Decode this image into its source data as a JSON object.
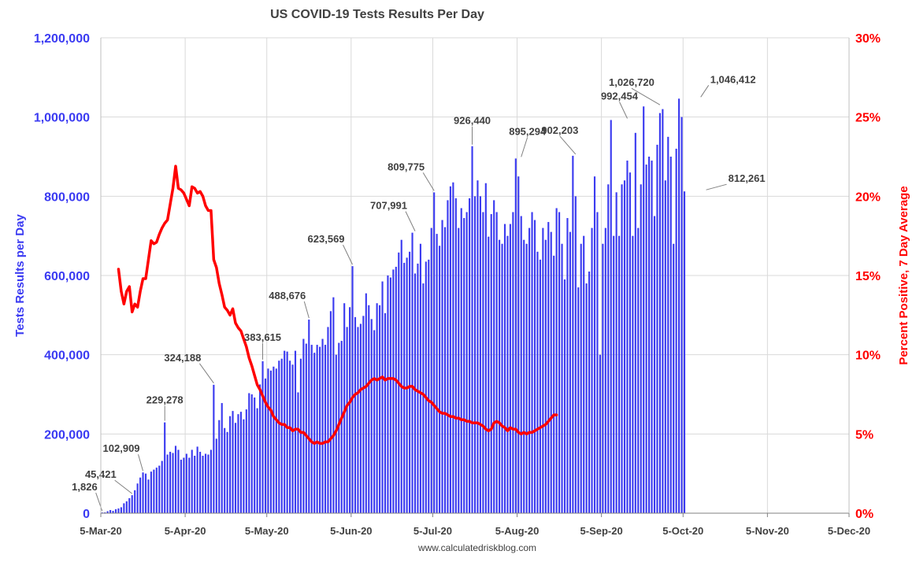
{
  "chart_data": {
    "type": "bar",
    "title": "US COVID-19 Tests Results Per Day",
    "source": "www.calculatedriskblog.com",
    "ylabel": "Tests Results per Day",
    "ylabel_right": "Percent Positive, 7 Day Average",
    "ylim": [
      0,
      1200000
    ],
    "ylim_right": [
      0,
      30
    ],
    "grid": true,
    "xlim_dates": [
      "2020-03-05",
      "2020-12-05"
    ],
    "x_tick_labels": [
      "5-Mar-20",
      "5-Apr-20",
      "5-May-20",
      "5-Jun-20",
      "5-Jul-20",
      "5-Aug-20",
      "5-Sep-20",
      "5-Oct-20",
      "5-Nov-20",
      "5-Dec-20"
    ],
    "y_tick_labels": [
      "0",
      "200,000",
      "400,000",
      "600,000",
      "800,000",
      "1,000,000",
      "1,200,000"
    ],
    "y_tick_labels_right": [
      "0%",
      "5%",
      "10%",
      "15%",
      "20%",
      "25%",
      "30%"
    ],
    "series": [
      {
        "name": "Tests Results per Day",
        "color": "#3b3bf0",
        "start_date": "2020-03-05",
        "values": [
          1826,
          2000,
          5000,
          8000,
          6000,
          10000,
          12000,
          15000,
          25000,
          30000,
          38000,
          45421,
          58000,
          75000,
          90000,
          102909,
          100000,
          85000,
          105000,
          110000,
          115000,
          120000,
          132000,
          229278,
          148000,
          155000,
          152000,
          170000,
          160000,
          135000,
          140000,
          150000,
          140000,
          160000,
          145000,
          168000,
          155000,
          145000,
          150000,
          148000,
          160000,
          324188,
          188000,
          235000,
          278000,
          215000,
          205000,
          245000,
          258000,
          228000,
          250000,
          256000,
          237000,
          262000,
          303000,
          300000,
          292000,
          265000,
          325000,
          383615,
          340000,
          365000,
          360000,
          370000,
          365000,
          385000,
          390000,
          410000,
          408000,
          385000,
          375000,
          410000,
          305000,
          390000,
          440000,
          428000,
          488676,
          425000,
          405000,
          425000,
          420000,
          440000,
          425000,
          470000,
          510000,
          545000,
          400000,
          430000,
          435000,
          530000,
          470000,
          520000,
          623569,
          495000,
          470000,
          478000,
          498000,
          555000,
          525000,
          490000,
          462000,
          530000,
          525000,
          585000,
          505000,
          600000,
          595000,
          615000,
          622000,
          658000,
          690000,
          632000,
          645000,
          660000,
          707991,
          605000,
          630000,
          680000,
          580000,
          635000,
          640000,
          720000,
          809775,
          705000,
          675000,
          740000,
          722000,
          790000,
          825000,
          835000,
          795000,
          720000,
          770000,
          745000,
          760000,
          795000,
          926440,
          800000,
          840000,
          800000,
          760000,
          833000,
          698000,
          755000,
          790000,
          760000,
          690000,
          680000,
          730000,
          700000,
          730000,
          760000,
          895294,
          850000,
          750000,
          690000,
          680000,
          720000,
          760000,
          740000,
          660000,
          640000,
          720000,
          690000,
          735000,
          710000,
          650000,
          770000,
          760000,
          680000,
          590000,
          745000,
          710000,
          902203,
          800000,
          570000,
          680000,
          700000,
          580000,
          610000,
          720000,
          850000,
          760000,
          400000,
          680000,
          720000,
          830000,
          992454,
          700000,
          810000,
          700000,
          830000,
          840000,
          890000,
          860000,
          700000,
          960000,
          720000,
          830000,
          1026720,
          880000,
          900000,
          890000,
          750000,
          930000,
          1010000,
          1020000,
          840000,
          950000,
          900000,
          680000,
          920000,
          1046412,
          1000000,
          812261
        ],
        "labeled_points": [
          {
            "date": "2020-03-05",
            "value": 1826,
            "label": "1,826"
          },
          {
            "date": "2020-03-16",
            "value": 45421,
            "label": "45,421"
          },
          {
            "date": "2020-03-20",
            "value": 102909,
            "label": "102,909"
          },
          {
            "date": "2020-03-28",
            "value": 229278,
            "label": "229,278"
          },
          {
            "date": "2020-04-15",
            "value": 324188,
            "label": "324,188"
          },
          {
            "date": "2020-05-03",
            "value": 383615,
            "label": "383,615"
          },
          {
            "date": "2020-05-20",
            "value": 488676,
            "label": "488,676"
          },
          {
            "date": "2020-06-05",
            "value": 623569,
            "label": "623,569"
          },
          {
            "date": "2020-06-28",
            "value": 707991,
            "label": "707,991"
          },
          {
            "date": "2020-07-05",
            "value": 809775,
            "label": "809,775"
          },
          {
            "date": "2020-07-19",
            "value": 926440,
            "label": "926,440"
          },
          {
            "date": "2020-08-06",
            "value": 895294,
            "label": "895,294"
          },
          {
            "date": "2020-08-26",
            "value": 902203,
            "label": "902,203"
          },
          {
            "date": "2020-09-14",
            "value": 992454,
            "label": "992,454"
          },
          {
            "date": "2020-09-26",
            "value": 1026720,
            "label": "1,026,720"
          },
          {
            "date": "2020-10-11",
            "value": 1046412,
            "label": "1,046,412"
          },
          {
            "date": "2020-10-13",
            "value": 812261,
            "label": "812,261"
          }
        ]
      },
      {
        "name": "Percent Positive, 7 Day Average",
        "color": "#ff0000",
        "axis": "right",
        "start_date": "2020-03-11",
        "values": [
          15.4,
          14.0,
          13.2,
          14.0,
          14.3,
          12.7,
          13.2,
          13.0,
          14.0,
          14.8,
          14.8,
          16.0,
          17.2,
          17.0,
          17.1,
          17.6,
          18.0,
          18.3,
          18.5,
          19.5,
          20.5,
          21.9,
          20.5,
          20.4,
          20.2,
          19.8,
          19.4,
          20.6,
          20.5,
          20.2,
          20.3,
          20.0,
          19.4,
          19.1,
          19.1,
          16.0,
          15.5,
          14.5,
          13.8,
          13.0,
          12.8,
          12.5,
          12.9,
          12.0,
          11.7,
          11.5,
          11.0,
          10.5,
          9.8,
          9.3,
          8.7,
          8.1,
          7.8,
          7.4,
          7.0,
          6.7,
          6.5,
          6.1,
          5.9,
          5.7,
          5.6,
          5.6,
          5.4,
          5.4,
          5.2,
          5.3,
          5.3,
          5.1,
          5.1,
          4.9,
          4.7,
          4.5,
          4.4,
          4.5,
          4.4,
          4.4,
          4.5,
          4.5,
          4.7,
          4.9,
          5.2,
          5.6,
          6.0,
          6.4,
          6.8,
          7.0,
          7.3,
          7.5,
          7.6,
          7.8,
          7.9,
          8.0,
          8.2,
          8.4,
          8.5,
          8.4,
          8.5,
          8.6,
          8.4,
          8.5,
          8.5,
          8.5,
          8.4,
          8.2,
          8.0,
          7.9,
          7.9,
          8.0,
          8.0,
          7.8,
          7.7,
          7.6,
          7.5,
          7.3,
          7.1,
          7.0,
          6.8,
          6.6,
          6.4,
          6.3,
          6.3,
          6.2,
          6.1,
          6.1,
          6.0,
          6.0,
          5.9,
          5.9,
          5.8,
          5.8,
          5.7,
          5.7,
          5.7,
          5.6,
          5.5,
          5.3,
          5.2,
          5.3,
          5.7,
          5.8,
          5.7,
          5.5,
          5.4,
          5.2,
          5.4,
          5.3,
          5.3,
          5.1,
          5.0,
          5.1,
          5.0,
          5.1,
          5.1,
          5.2,
          5.3,
          5.4,
          5.5,
          5.6,
          5.8,
          6.0,
          6.2,
          6.2
        ]
      }
    ]
  }
}
